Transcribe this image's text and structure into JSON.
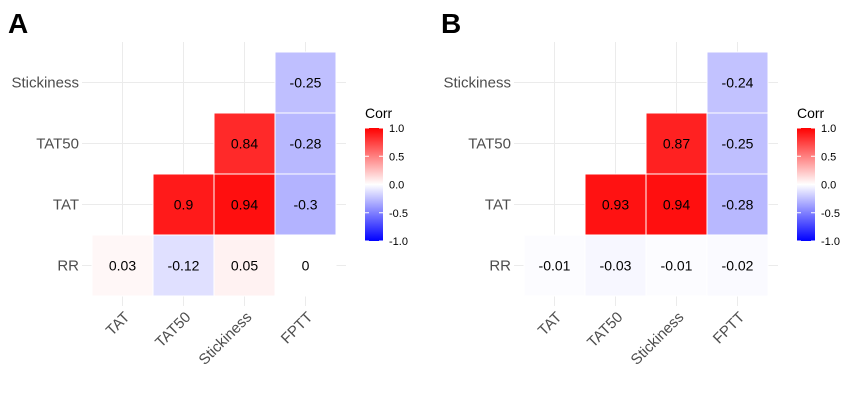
{
  "chart_data": [
    {
      "type": "heatmap",
      "panel": "A",
      "rows": [
        "RR",
        "TAT",
        "TAT50",
        "Stickiness"
      ],
      "cols": [
        "TAT",
        "TAT50",
        "Stickiness",
        "FPTT"
      ],
      "cells": [
        {
          "row": "RR",
          "col": "TAT",
          "value": 0.03,
          "label": "0.03"
        },
        {
          "row": "RR",
          "col": "TAT50",
          "value": -0.12,
          "label": "-0.12"
        },
        {
          "row": "RR",
          "col": "Stickiness",
          "value": 0.05,
          "label": "0.05"
        },
        {
          "row": "RR",
          "col": "FPTT",
          "value": 0,
          "label": "0"
        },
        {
          "row": "TAT",
          "col": "TAT50",
          "value": 0.9,
          "label": "0.9"
        },
        {
          "row": "TAT",
          "col": "Stickiness",
          "value": 0.94,
          "label": "0.94"
        },
        {
          "row": "TAT",
          "col": "FPTT",
          "value": -0.3,
          "label": "-0.3"
        },
        {
          "row": "TAT50",
          "col": "Stickiness",
          "value": 0.84,
          "label": "0.84"
        },
        {
          "row": "TAT50",
          "col": "FPTT",
          "value": -0.28,
          "label": "-0.28"
        },
        {
          "row": "Stickiness",
          "col": "FPTT",
          "value": -0.25,
          "label": "-0.25"
        }
      ],
      "legend": {
        "title": "Corr",
        "ticks": [
          "1.0",
          "0.5",
          "0.0",
          "-0.5",
          "-1.0"
        ],
        "range": [
          -1,
          1
        ],
        "colors": {
          "low": "#0000ff",
          "mid": "#ffffff",
          "high": "#ff0000"
        }
      },
      "grid": true
    },
    {
      "type": "heatmap",
      "panel": "B",
      "rows": [
        "RR",
        "TAT",
        "TAT50",
        "Stickiness"
      ],
      "cols": [
        "TAT",
        "TAT50",
        "Stickiness",
        "FPTT"
      ],
      "cells": [
        {
          "row": "RR",
          "col": "TAT",
          "value": -0.01,
          "label": "-0.01"
        },
        {
          "row": "RR",
          "col": "TAT50",
          "value": -0.03,
          "label": "-0.03"
        },
        {
          "row": "RR",
          "col": "Stickiness",
          "value": -0.01,
          "label": "-0.01"
        },
        {
          "row": "RR",
          "col": "FPTT",
          "value": -0.02,
          "label": "-0.02"
        },
        {
          "row": "TAT",
          "col": "TAT50",
          "value": 0.93,
          "label": "0.93"
        },
        {
          "row": "TAT",
          "col": "Stickiness",
          "value": 0.94,
          "label": "0.94"
        },
        {
          "row": "TAT",
          "col": "FPTT",
          "value": -0.28,
          "label": "-0.28"
        },
        {
          "row": "TAT50",
          "col": "Stickiness",
          "value": 0.87,
          "label": "0.87"
        },
        {
          "row": "TAT50",
          "col": "FPTT",
          "value": -0.25,
          "label": "-0.25"
        },
        {
          "row": "Stickiness",
          "col": "FPTT",
          "value": -0.24,
          "label": "-0.24"
        }
      ],
      "legend": {
        "title": "Corr",
        "ticks": [
          "1.0",
          "0.5",
          "0.0",
          "-0.5",
          "-1.0"
        ],
        "range": [
          -1,
          1
        ],
        "colors": {
          "low": "#0000ff",
          "mid": "#ffffff",
          "high": "#ff0000"
        }
      },
      "grid": true
    }
  ]
}
